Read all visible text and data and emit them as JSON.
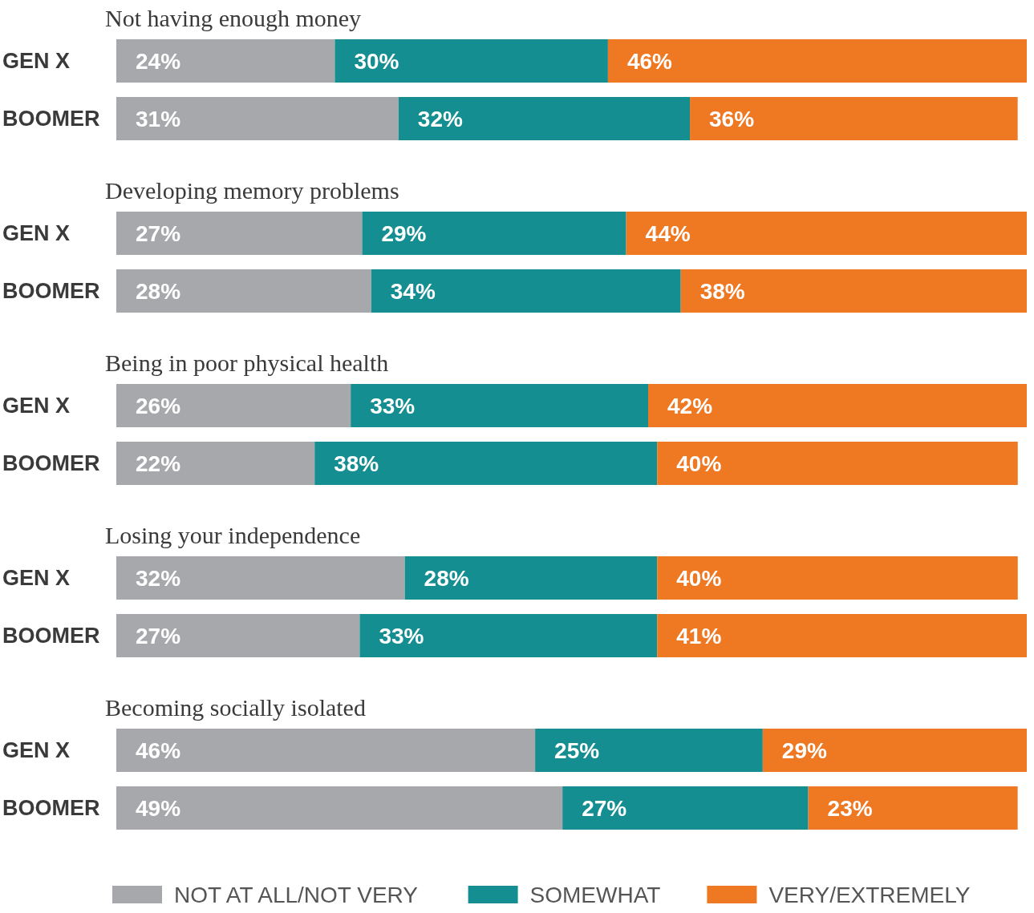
{
  "chart_data": [
    {
      "type": "bar",
      "title": "Not having enough money",
      "orientation": "horizontal",
      "stacked": true,
      "categories": [
        "GEN X",
        "BOOMER"
      ],
      "xlim": [
        0,
        100
      ],
      "tick_labels": "y",
      "grid": false,
      "legend": false,
      "series": [
        {
          "color": "#a7a8ab",
          "values": [
            24,
            31
          ],
          "value_labels": [
            "24%",
            "31%"
          ]
        },
        {
          "color": "#148e91",
          "values": [
            30,
            32
          ],
          "value_labels": [
            "30%",
            "32%"
          ]
        },
        {
          "color": "#ef7822",
          "values": [
            46,
            36
          ],
          "value_labels": [
            "46%",
            "36%"
          ]
        }
      ]
    },
    {
      "type": "bar",
      "title": "Developing memory problems",
      "orientation": "horizontal",
      "stacked": true,
      "categories": [
        "GEN X",
        "BOOMER"
      ],
      "xlim": [
        0,
        100
      ],
      "tick_labels": "y",
      "grid": false,
      "legend": false,
      "series": [
        {
          "color": "#a7a8ab",
          "values": [
            27,
            28
          ],
          "value_labels": [
            "27%",
            "28%"
          ]
        },
        {
          "color": "#148e91",
          "values": [
            29,
            34
          ],
          "value_labels": [
            "29%",
            "34%"
          ]
        },
        {
          "color": "#ef7822",
          "values": [
            44,
            38
          ],
          "value_labels": [
            "44%",
            "38%"
          ]
        }
      ]
    },
    {
      "type": "bar",
      "title": "Being in poor physical health",
      "orientation": "horizontal",
      "stacked": true,
      "categories": [
        "GEN X",
        "BOOMER"
      ],
      "xlim": [
        0,
        101
      ],
      "tick_labels": "y",
      "grid": false,
      "legend": false,
      "series": [
        {
          "color": "#a7a8ab",
          "values": [
            26,
            22
          ],
          "value_labels": [
            "26%",
            "22%"
          ]
        },
        {
          "color": "#148e91",
          "values": [
            33,
            38
          ],
          "value_labels": [
            "33%",
            "38%"
          ]
        },
        {
          "color": "#ef7822",
          "values": [
            42,
            40
          ],
          "value_labels": [
            "42%",
            "40%"
          ]
        }
      ]
    },
    {
      "type": "bar",
      "title": "Losing your independence",
      "orientation": "horizontal",
      "stacked": true,
      "categories": [
        "GEN X",
        "BOOMER"
      ],
      "xlim": [
        0,
        101
      ],
      "tick_labels": "y",
      "grid": false,
      "legend": false,
      "series": [
        {
          "color": "#a7a8ab",
          "values": [
            32,
            27
          ],
          "value_labels": [
            "32%",
            "27%"
          ]
        },
        {
          "color": "#148e91",
          "values": [
            28,
            33
          ],
          "value_labels": [
            "28%",
            "33%"
          ]
        },
        {
          "color": "#ef7822",
          "values": [
            40,
            41
          ],
          "value_labels": [
            "40%",
            "41%"
          ]
        }
      ]
    },
    {
      "type": "bar",
      "title": "Becoming socially isolated",
      "orientation": "horizontal",
      "stacked": true,
      "categories": [
        "GEN X",
        "BOOMER"
      ],
      "xlim": [
        0,
        100
      ],
      "tick_labels": "y",
      "grid": false,
      "legend": "bottom",
      "series": [
        {
          "name": "NOT AT ALL/NOT VERY",
          "color": "#a7a8ab",
          "values": [
            46,
            49
          ],
          "value_labels": [
            "46%",
            "49%"
          ]
        },
        {
          "name": "SOMEWHAT",
          "color": "#148e91",
          "values": [
            25,
            27
          ],
          "value_labels": [
            "25%",
            "27%"
          ]
        },
        {
          "name": "VERY/EXTREMELY",
          "color": "#ef7822",
          "values": [
            29,
            23
          ],
          "value_labels": [
            "29%",
            "23%"
          ]
        }
      ]
    }
  ]
}
